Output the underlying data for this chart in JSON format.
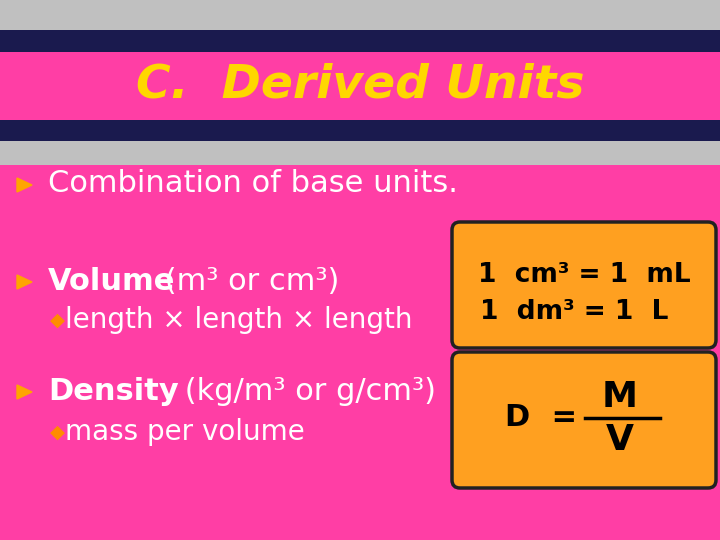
{
  "bg_color": "#FF3EA5",
  "title_color": "#FFD700",
  "title_text": "C.  Derived Units",
  "white_text": "#FFFFFF",
  "orange_box_color": "#FFA020",
  "box_border_color": "#222222",
  "bullet_color": "#FFA500",
  "diamond_color": "#FF8C00",
  "line1_main": "Combination of base units.",
  "line2_bold": "Volume",
  "line2_rest": " (m³ or cm³)",
  "line3_diamond": "◆",
  "line3_rest": "length × length × length",
  "line4_bold": "Density",
  "line4_rest": " (kg/m³ or g/cm³)",
  "line5_diamond": "◆",
  "line5_rest": "mass per volume",
  "box1_line1": "1  cm³ = 1  mL",
  "box1_line2": "1  dm³ = 1  L",
  "box2_M": "M",
  "box2_V": "V",
  "navy_color": "#1a1a4e",
  "silver_color": "#C0C0C0"
}
